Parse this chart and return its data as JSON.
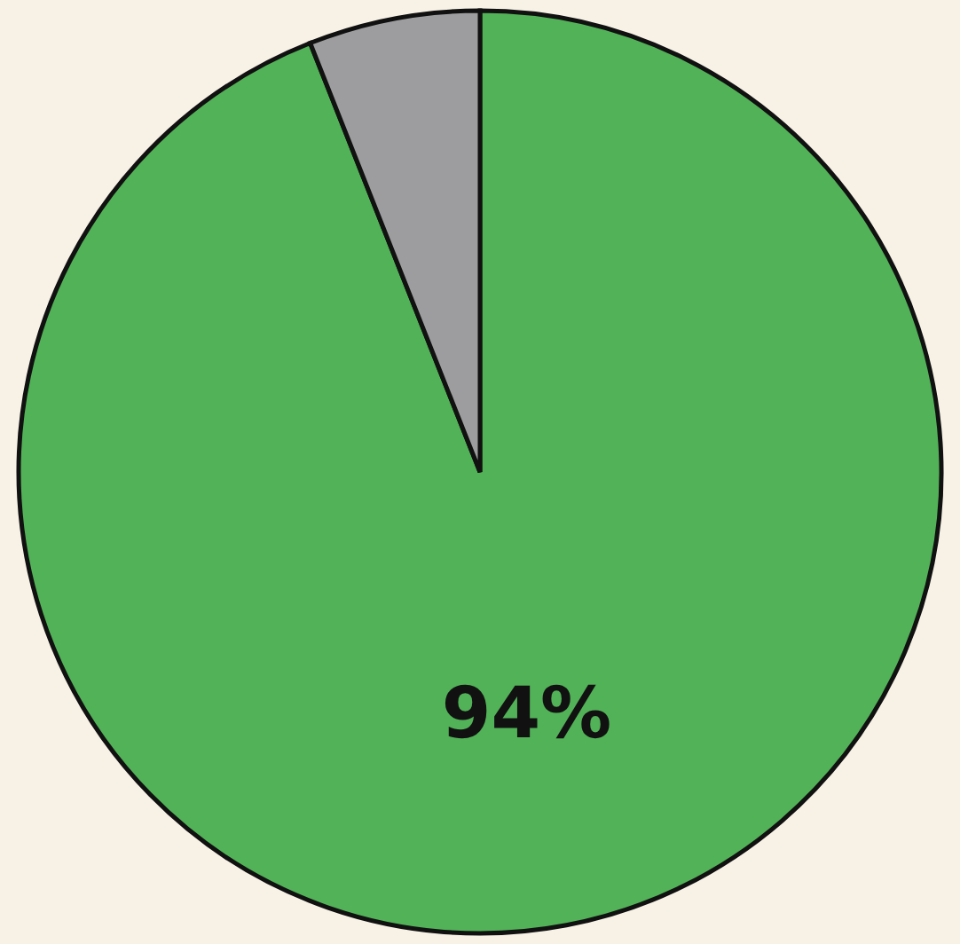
{
  "chart_data": {
    "type": "pie",
    "categories": [
      null,
      null
    ],
    "values": [
      94,
      6
    ],
    "colors": [
      "#52b257",
      "#9d9d9f"
    ],
    "value_labels": [
      "94%",
      null
    ]
  }
}
